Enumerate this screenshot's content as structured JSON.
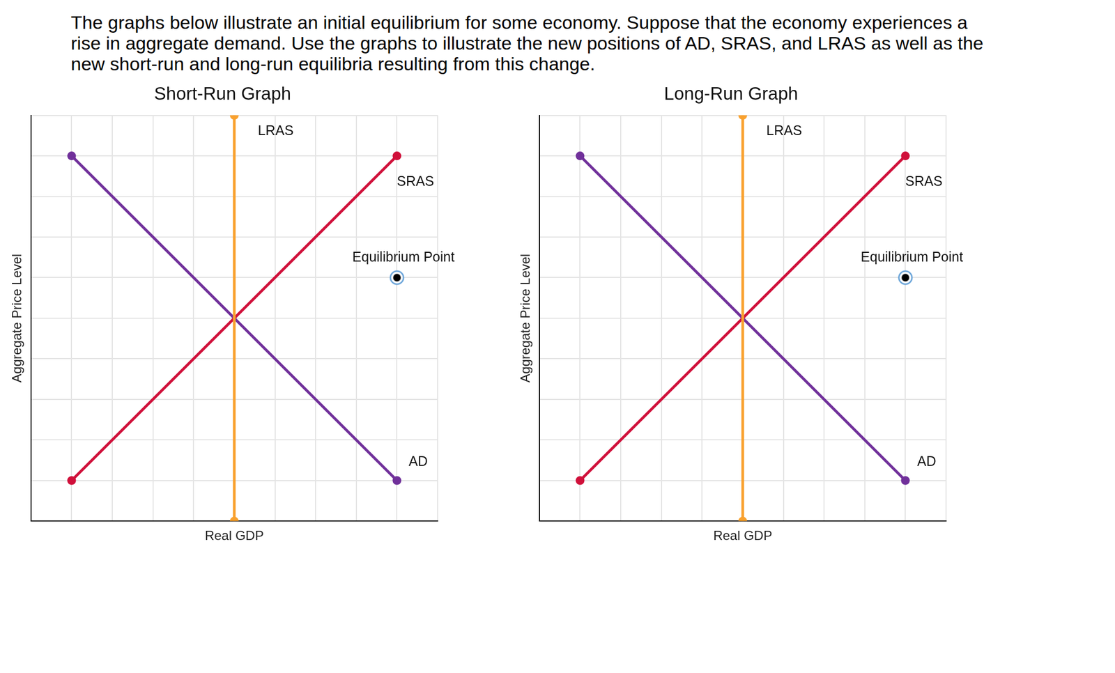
{
  "instructions": [
    "The graphs below illustrate an initial equilibrium for some economy. Suppose that the economy experiences a",
    "rise in aggregate demand. Use the graphs to illustrate the new positions of AD, SRAS, and LRAS as well as the",
    "new short-run and long-run equilibria resulting from this change."
  ],
  "chart_data": [
    {
      "type": "line",
      "title": "Short-Run Graph",
      "x_label": "Real GDP",
      "y_label": "Aggregate Price Level",
      "xlim": [
        0,
        10
      ],
      "ylim": [
        0,
        10
      ],
      "xticks": [
        0,
        1,
        2,
        3,
        4,
        5,
        6,
        7,
        8,
        9,
        10
      ],
      "yticks": [
        0,
        1,
        2,
        3,
        4,
        5,
        6,
        7,
        8,
        9,
        10
      ],
      "grid": true,
      "tick_labels": false,
      "series": [
        {
          "name": "LRAS",
          "color": "#f9a12e",
          "x": [
            5,
            5
          ],
          "values": [
            0,
            10
          ],
          "marker": "circle",
          "line_style": "solid"
        },
        {
          "name": "SRAS",
          "color": "#d0103a",
          "x": [
            1,
            9
          ],
          "values": [
            1,
            9
          ],
          "marker": "circle",
          "line_style": "solid"
        },
        {
          "name": "AD",
          "color": "#70309a",
          "x": [
            1,
            9
          ],
          "values": [
            9,
            1
          ],
          "marker": "circle",
          "line_style": "solid"
        },
        {
          "name": "Equilibrium Point",
          "type": "scatter",
          "color": "#000000",
          "x": [
            9
          ],
          "values": [
            6
          ],
          "marker": "circle"
        }
      ]
    },
    {
      "type": "line",
      "title": "Long-Run Graph",
      "x_label": "Real GDP",
      "y_label": "Aggregate Price Level",
      "xlim": [
        0,
        10
      ],
      "ylim": [
        0,
        10
      ],
      "xticks": [
        0,
        1,
        2,
        3,
        4,
        5,
        6,
        7,
        8,
        9,
        10
      ],
      "yticks": [
        0,
        1,
        2,
        3,
        4,
        5,
        6,
        7,
        8,
        9,
        10
      ],
      "grid": true,
      "tick_labels": false,
      "series": [
        {
          "name": "LRAS",
          "color": "#f9a12e",
          "x": [
            5,
            5
          ],
          "values": [
            0,
            10
          ],
          "marker": "circle",
          "line_style": "solid"
        },
        {
          "name": "SRAS",
          "color": "#d0103a",
          "x": [
            1,
            9
          ],
          "values": [
            1,
            9
          ],
          "marker": "circle",
          "line_style": "solid"
        },
        {
          "name": "AD",
          "color": "#70309a",
          "x": [
            1,
            9
          ],
          "values": [
            9,
            1
          ],
          "marker": "circle",
          "line_style": "solid"
        },
        {
          "name": "Equilibrium Point",
          "type": "scatter",
          "color": "#000000",
          "x": [
            9
          ],
          "values": [
            6
          ],
          "marker": "circle"
        }
      ]
    }
  ]
}
